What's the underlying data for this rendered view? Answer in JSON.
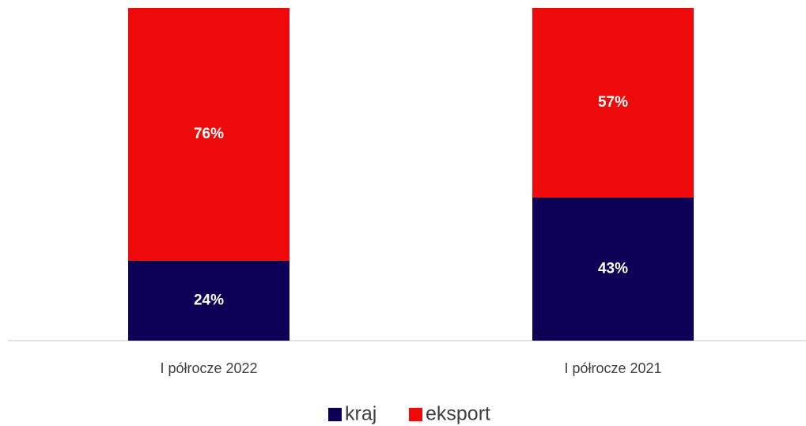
{
  "chart_data": {
    "type": "stacked_bar",
    "categories": [
      "I półrocze 2022",
      "I półrocze 2021"
    ],
    "series": [
      {
        "name": "kraj",
        "color": "#0d0057",
        "values": [
          24,
          43
        ],
        "value_labels": [
          "24%",
          "43%"
        ]
      },
      {
        "name": "eksport",
        "color": "#ee0a0a",
        "values": [
          76,
          57
        ],
        "value_labels": [
          "76%",
          "57%"
        ]
      }
    ],
    "legend": "bottom"
  }
}
